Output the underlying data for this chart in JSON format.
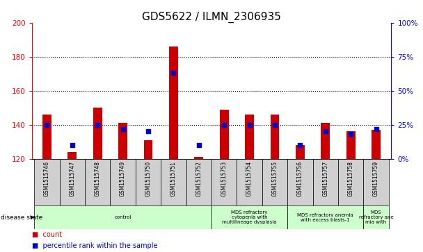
{
  "title": "GDS5622 / ILMN_2306935",
  "samples": [
    "GSM1515746",
    "GSM1515747",
    "GSM1515748",
    "GSM1515749",
    "GSM1515750",
    "GSM1515751",
    "GSM1515752",
    "GSM1515753",
    "GSM1515754",
    "GSM1515755",
    "GSM1515756",
    "GSM1515757",
    "GSM1515758",
    "GSM1515759"
  ],
  "counts": [
    146,
    124,
    150,
    141,
    131,
    186,
    121,
    149,
    146,
    146,
    128,
    141,
    136,
    137
  ],
  "percentile_ranks": [
    25,
    10,
    25,
    22,
    20,
    63,
    10,
    25,
    25,
    25,
    10,
    20,
    18,
    22
  ],
  "ymin": 120,
  "ymax": 200,
  "yticks": [
    120,
    140,
    160,
    180,
    200
  ],
  "y2min": 0,
  "y2max": 100,
  "y2ticks": [
    0,
    25,
    50,
    75,
    100
  ],
  "bar_color": "#cc0000",
  "dot_color": "#0000cc",
  "bg_color": "#ffffff",
  "disease_groups": [
    {
      "label": "control",
      "start": 0,
      "end": 7
    },
    {
      "label": "MDS refractory\ncytopenia with\nmultilineage dysplasia",
      "start": 7,
      "end": 10
    },
    {
      "label": "MDS refractory anemia\nwith excess blasts-1",
      "start": 10,
      "end": 13
    },
    {
      "label": "MDS\nrefractory ane\nmia with",
      "start": 13,
      "end": 14
    }
  ],
  "disease_color": "#ccffcc",
  "tick_bg": "#d0d0d0",
  "title_fontsize": 11,
  "bar_width": 0.35
}
